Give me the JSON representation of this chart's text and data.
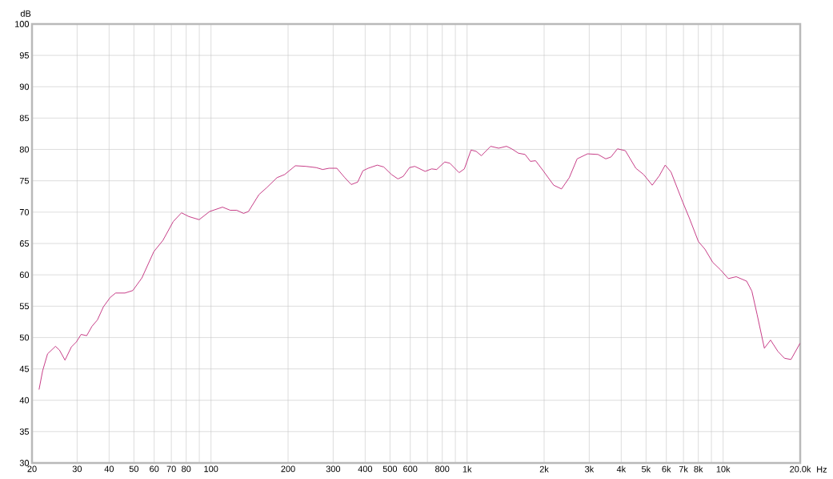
{
  "chart_data": {
    "type": "line",
    "xlabel": "Hz",
    "ylabel": "dB",
    "log": "x",
    "grid": true,
    "marker": "none",
    "line_style": "solid",
    "xlim": [
      20,
      20000
    ],
    "ylim": [
      30,
      100
    ],
    "xticks": [
      20,
      30,
      40,
      50,
      60,
      70,
      80,
      {
        "value": 90,
        "label": null
      },
      100,
      200,
      300,
      400,
      500,
      600,
      {
        "value": 700,
        "label": null
      },
      800,
      {
        "value": 900,
        "label": null
      },
      {
        "value": 1000,
        "label": "1k"
      },
      {
        "value": 2000,
        "label": "2k"
      },
      {
        "value": 3000,
        "label": "3k"
      },
      {
        "value": 4000,
        "label": "4k"
      },
      {
        "value": 5000,
        "label": "5k"
      },
      {
        "value": 6000,
        "label": "6k"
      },
      {
        "value": 7000,
        "label": "7k"
      },
      {
        "value": 8000,
        "label": "8k"
      },
      {
        "value": 9000,
        "label": null
      },
      {
        "value": 10000,
        "label": "10k"
      },
      {
        "value": 20000,
        "label": "20.0k"
      }
    ],
    "yticks": [
      30,
      35,
      40,
      45,
      50,
      55,
      60,
      65,
      70,
      75,
      80,
      85,
      90,
      95,
      100
    ],
    "x": [
      21.3,
      22,
      23,
      24.7,
      25.6,
      26.9,
      28.5,
      29.8,
      31.1,
      32.7,
      34.3,
      36,
      38,
      40.4,
      42.4,
      46.1,
      49.5,
      53.7,
      59.8,
      64.9,
      71.2,
      76.7,
      81.9,
      89.9,
      98.7,
      110.9,
      118.9,
      126,
      134,
      140,
      153.9,
      165,
      181,
      194,
      213.5,
      234.6,
      257.6,
      273,
      289,
      310,
      333,
      353,
      374,
      392,
      411,
      446,
      473,
      507,
      537,
      563,
      596,
      625,
      686,
      727,
      761,
      818,
      857,
      931,
      976,
      1036,
      1085,
      1137,
      1236,
      1328,
      1426,
      1494,
      1587,
      1685,
      1767,
      1852,
      1983,
      2179,
      2338,
      2507,
      2691,
      2954,
      3245,
      3481,
      3649,
      3868,
      4151,
      4560,
      4892,
      5287,
      5632,
      5941,
      6259,
      6955,
      7374,
      8009,
      8488,
      9107,
      9770,
      10480,
      11250,
      12350,
      12950,
      13570,
      14490,
      15320,
      16360,
      17360,
      18410,
      19980
    ],
    "series": [
      {
        "color": "#c0287a",
        "values": [
          41.7,
          44.7,
          47.4,
          48.6,
          48.0,
          46.4,
          48.5,
          49.3,
          50.5,
          50.3,
          51.8,
          52.8,
          54.9,
          56.4,
          57.1,
          57.1,
          57.5,
          59.5,
          63.7,
          65.5,
          68.5,
          69.9,
          69.3,
          68.8,
          70.1,
          70.8,
          70.3,
          70.3,
          69.8,
          70.1,
          72.8,
          73.9,
          75.5,
          76.0,
          77.4,
          77.3,
          77.1,
          76.8,
          77.0,
          77.0,
          75.5,
          74.4,
          74.8,
          76.6,
          77.0,
          77.5,
          77.2,
          76.0,
          75.3,
          75.7,
          77.1,
          77.3,
          76.5,
          76.9,
          76.8,
          78.0,
          77.8,
          76.3,
          76.9,
          79.9,
          79.7,
          79.0,
          80.5,
          80.2,
          80.5,
          80.1,
          79.4,
          79.2,
          78.1,
          78.2,
          76.6,
          74.3,
          73.7,
          75.5,
          78.5,
          79.3,
          79.2,
          78.5,
          78.8,
          80.1,
          79.8,
          77.0,
          76.0,
          74.3,
          75.8,
          77.5,
          76.4,
          71.6,
          69.1,
          65.3,
          64.1,
          62.0,
          60.8,
          59.4,
          59.7,
          59.0,
          57.4,
          53.7,
          48.3,
          49.6,
          47.8,
          46.7,
          46.5,
          49.1
        ]
      }
    ]
  }
}
